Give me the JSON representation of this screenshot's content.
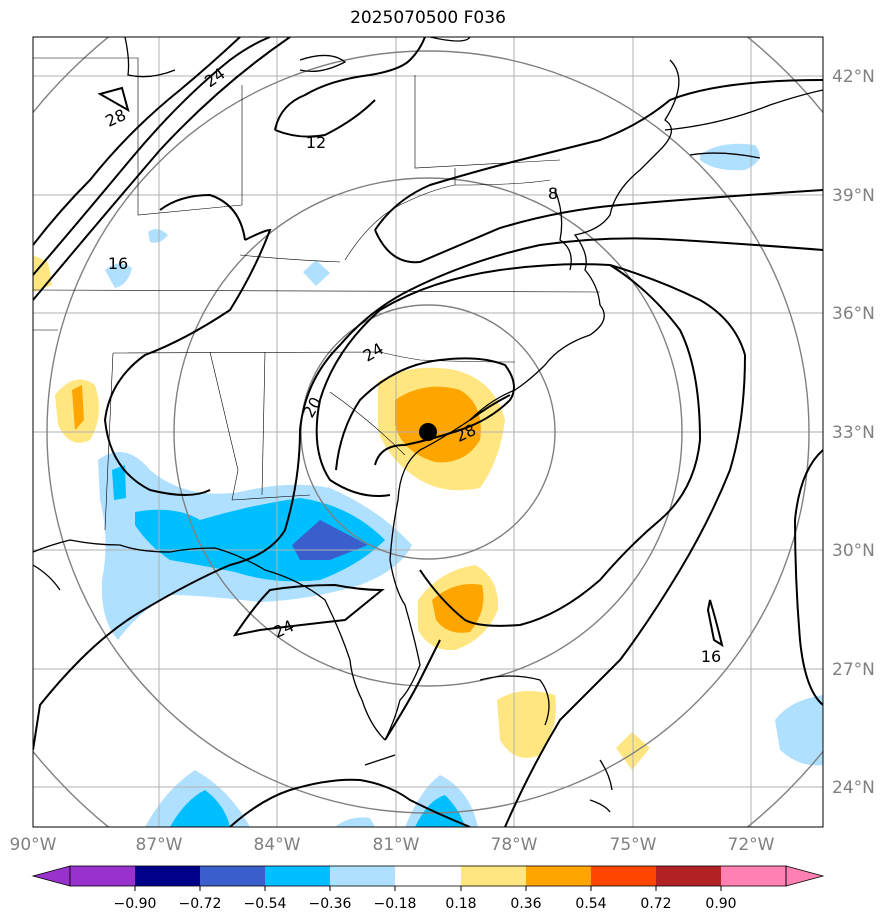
{
  "title": "2025070500 F036",
  "map": {
    "lon_labels": [
      "90°W",
      "87°W",
      "84°W",
      "81°W",
      "78°W",
      "75°W",
      "72°W"
    ],
    "lat_labels": [
      "42°N",
      "39°N",
      "36°N",
      "33°N",
      "30°N",
      "27°N",
      "24°N"
    ],
    "contour_labels": [
      "24",
      "28",
      "12",
      "8",
      "16",
      "24",
      "20",
      "28",
      "24",
      "16"
    ],
    "storm_center": {
      "lon": "79.7°W",
      "lat": "33.0°N"
    }
  },
  "colorbar": {
    "tick_labels": [
      "−0.90",
      "−0.72",
      "−0.54",
      "−0.36",
      "−0.18",
      "0.18",
      "0.36",
      "0.54",
      "0.72",
      "0.90"
    ],
    "colors": [
      "#9932cc",
      "#00008b",
      "#3a5fcd",
      "#00bfff",
      "#b0e0ff",
      "#ffffff",
      "#ffe680",
      "#ffa500",
      "#ff4500",
      "#b22222",
      "#ff80b3"
    ]
  },
  "colors": {
    "grid": "#b0b0b0",
    "range_rings": "#808080",
    "contours": "#000000",
    "axis_labels": "#808080"
  }
}
